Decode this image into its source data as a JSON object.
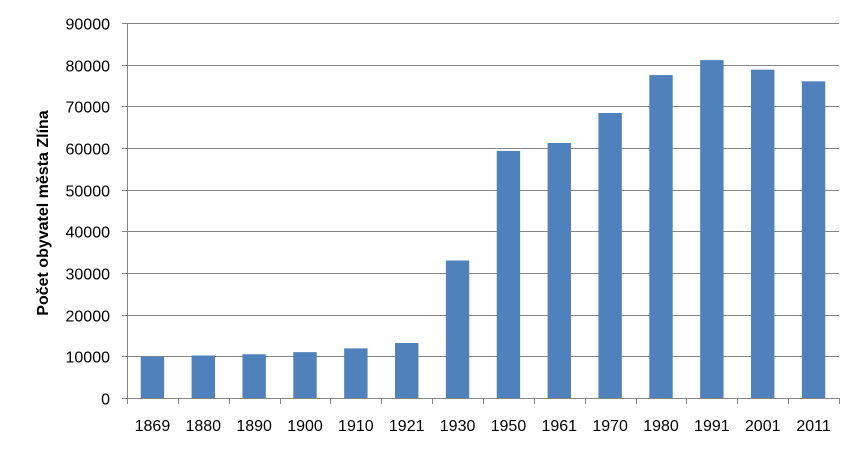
{
  "chart_data": {
    "type": "bar",
    "title": "",
    "xlabel": "",
    "ylabel": "Počet obyvatel města Zlína",
    "ylim": [
      0,
      90000
    ],
    "yticks": [
      0,
      10000,
      20000,
      30000,
      40000,
      50000,
      60000,
      70000,
      80000,
      90000
    ],
    "grid": true,
    "legend": "none",
    "categories": [
      "1869",
      "1880",
      "1890",
      "1900",
      "1910",
      "1921",
      "1930",
      "1950",
      "1961",
      "1970",
      "1980",
      "1991",
      "2001",
      "2011"
    ],
    "series": [
      {
        "values": [
          9900,
          10200,
          10500,
          11000,
          11900,
          13200,
          33000,
          59300,
          61200,
          68400,
          77500,
          81100,
          78800,
          76000
        ]
      }
    ],
    "colors": {
      "bar": "#4f81bd",
      "grid": "#868686",
      "axis": "#868686"
    }
  }
}
